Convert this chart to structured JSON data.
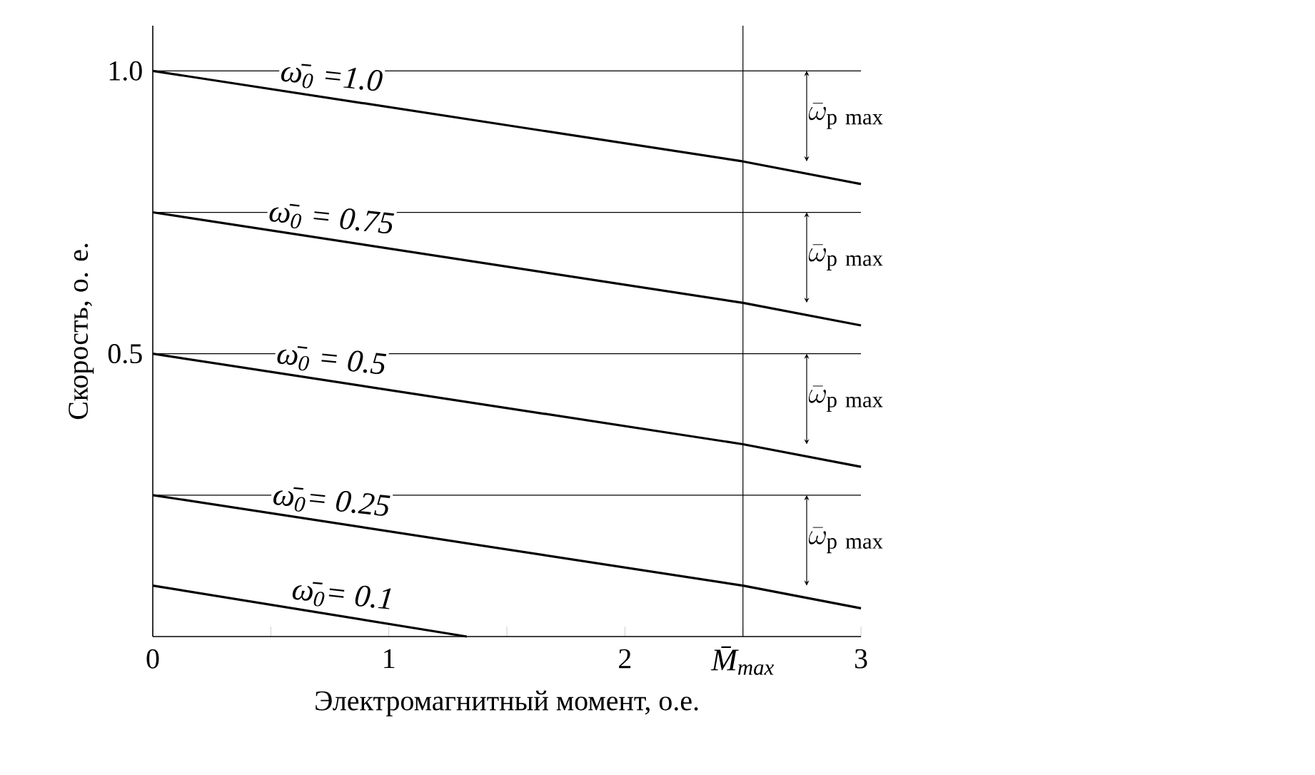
{
  "chart_data": {
    "type": "line",
    "xlabel": "Электромагнитный момент, о.е.",
    "ylabel": "Скорость, о. е.",
    "xlim": [
      0,
      3
    ],
    "ylim": [
      0,
      1.08
    ],
    "xticks": [
      0,
      {
        "value": 0.5,
        "label": null
      },
      1,
      {
        "value": 1.5,
        "label": null
      },
      2,
      {
        "value": 2.5,
        "label": null
      },
      3
    ],
    "yticks": [
      {
        "value": 0.5,
        "label": "0.5"
      },
      {
        "value": 1.0,
        "label": "1.0"
      }
    ],
    "grid": false,
    "marker": "none",
    "line_style": "solid",
    "series": [
      {
        "name": "ω̄$_{0}$ =1.0",
        "color": "#000000",
        "x": [
          0,
          2.5,
          3
        ],
        "values": [
          1.0,
          0.84,
          0.8
        ]
      },
      {
        "name": "ω̄$_{0}$ = 0.75",
        "color": "#000000",
        "x": [
          0,
          2.5,
          3
        ],
        "values": [
          0.75,
          0.59,
          0.55
        ]
      },
      {
        "name": "ω̄$_{0}$ = 0.5",
        "color": "#000000",
        "x": [
          0,
          2.5,
          3
        ],
        "values": [
          0.5,
          0.34,
          0.3
        ]
      },
      {
        "name": "ω̄$_{0}$= 0.25",
        "color": "#000000",
        "x": [
          0,
          2.5,
          3
        ],
        "values": [
          0.25,
          0.09,
          0.05
        ]
      },
      {
        "name": "ω̄$_{0}$= 0.1",
        "color": "#000000",
        "x": [
          0,
          1.33
        ],
        "values": [
          0.09,
          0.0
        ]
      }
    ],
    "ref_lines": [
      {
        "axis": "x",
        "value": 2.5,
        "label": "M̄$_{max}$"
      },
      {
        "axis": "y",
        "value": 1.0
      },
      {
        "axis": "y",
        "value": 0.75
      },
      {
        "axis": "y",
        "value": 0.5
      },
      {
        "axis": "y",
        "value": 0.25
      }
    ],
    "annotations": [
      "\\bar{\\omega}_{\\mathrm{p\\ max}}",
      "\\bar{\\omega}_{\\mathrm{p\\ max}}",
      "\\bar{\\omega}_{\\mathrm{p\\ max}}",
      "\\bar{\\omega}_{\\mathrm{p\\ max}}"
    ]
  }
}
